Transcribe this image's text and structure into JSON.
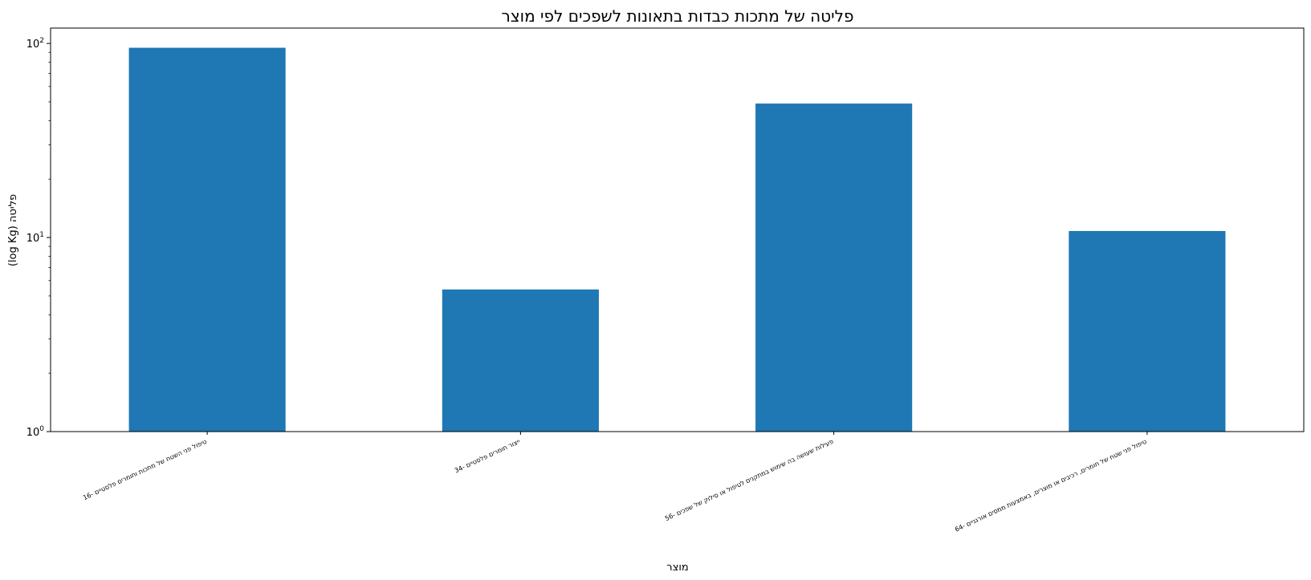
{
  "chart_data": {
    "type": "bar",
    "title": "פליטה של מתכות כבדות בתאונות לשפכים לפי מוצר",
    "xlabel": "מוצר",
    "ylabel": "(log Kg) פליטה",
    "yscale": "log",
    "ylim": [
      1,
      120
    ],
    "yticks": [
      {
        "value": 1,
        "base": "10",
        "exp": "0"
      },
      {
        "value": 10,
        "base": "10",
        "exp": "1"
      },
      {
        "value": 100,
        "base": "10",
        "exp": "2"
      }
    ],
    "categories": [
      "16- טיפול פני השטח של מתכות וחומרים פלסטיים",
      "34- ייצור חומרים פלסטיים",
      "56- פעילות שעושה בה שימוש במתקנים לטיפול או סילוק של שפכים",
      "64- טיפול פני שטח של חומרים, רכיבים או מוצרים, באמצעות ממסים אורגניים"
    ],
    "values": [
      95,
      5.4,
      49,
      10.8
    ],
    "bar_color": "#1f77b4",
    "grid": false
  }
}
